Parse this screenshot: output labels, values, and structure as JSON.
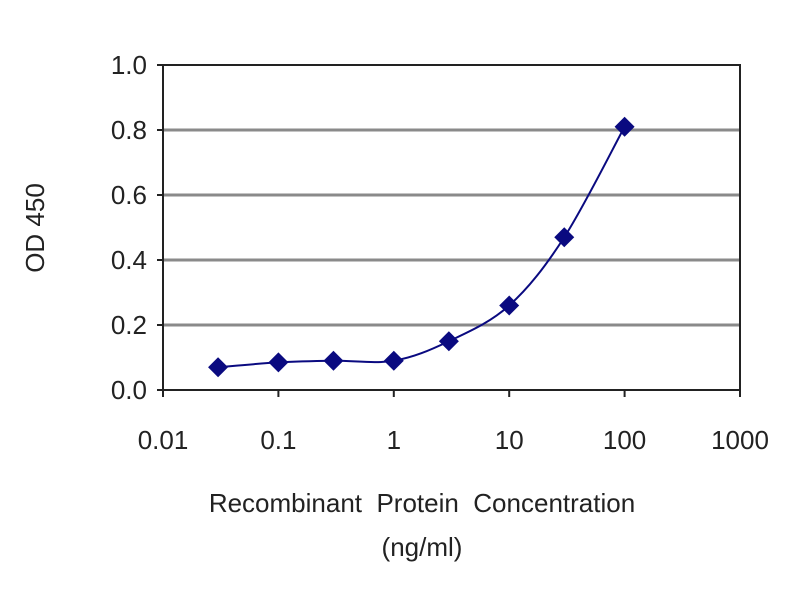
{
  "chart_data": {
    "type": "line",
    "title": "",
    "xlabel": "Recombinant  Protein  Concentration",
    "xlabel_unit": "(ng/ml)",
    "ylabel": "OD 450",
    "x_scale": "log",
    "xlim": [
      0.01,
      1000
    ],
    "ylim": [
      0,
      1.0
    ],
    "x_ticks": [
      "0.01",
      "0.1",
      "1",
      "10",
      "100",
      "1000"
    ],
    "y_ticks": [
      "0.0",
      "0.2",
      "0.4",
      "0.6",
      "0.8",
      "1.0"
    ],
    "grid": "horizontal",
    "legend": "none",
    "marker": "diamond",
    "colors": {
      "series": "#0a0a80",
      "grid": "#8a8a8a",
      "axis": "#222222"
    },
    "series": [
      {
        "x": [
          0.03,
          0.1,
          0.3,
          1,
          3,
          10,
          30,
          100
        ],
        "y": [
          0.07,
          0.085,
          0.09,
          0.09,
          0.15,
          0.26,
          0.47,
          0.81
        ]
      }
    ]
  }
}
